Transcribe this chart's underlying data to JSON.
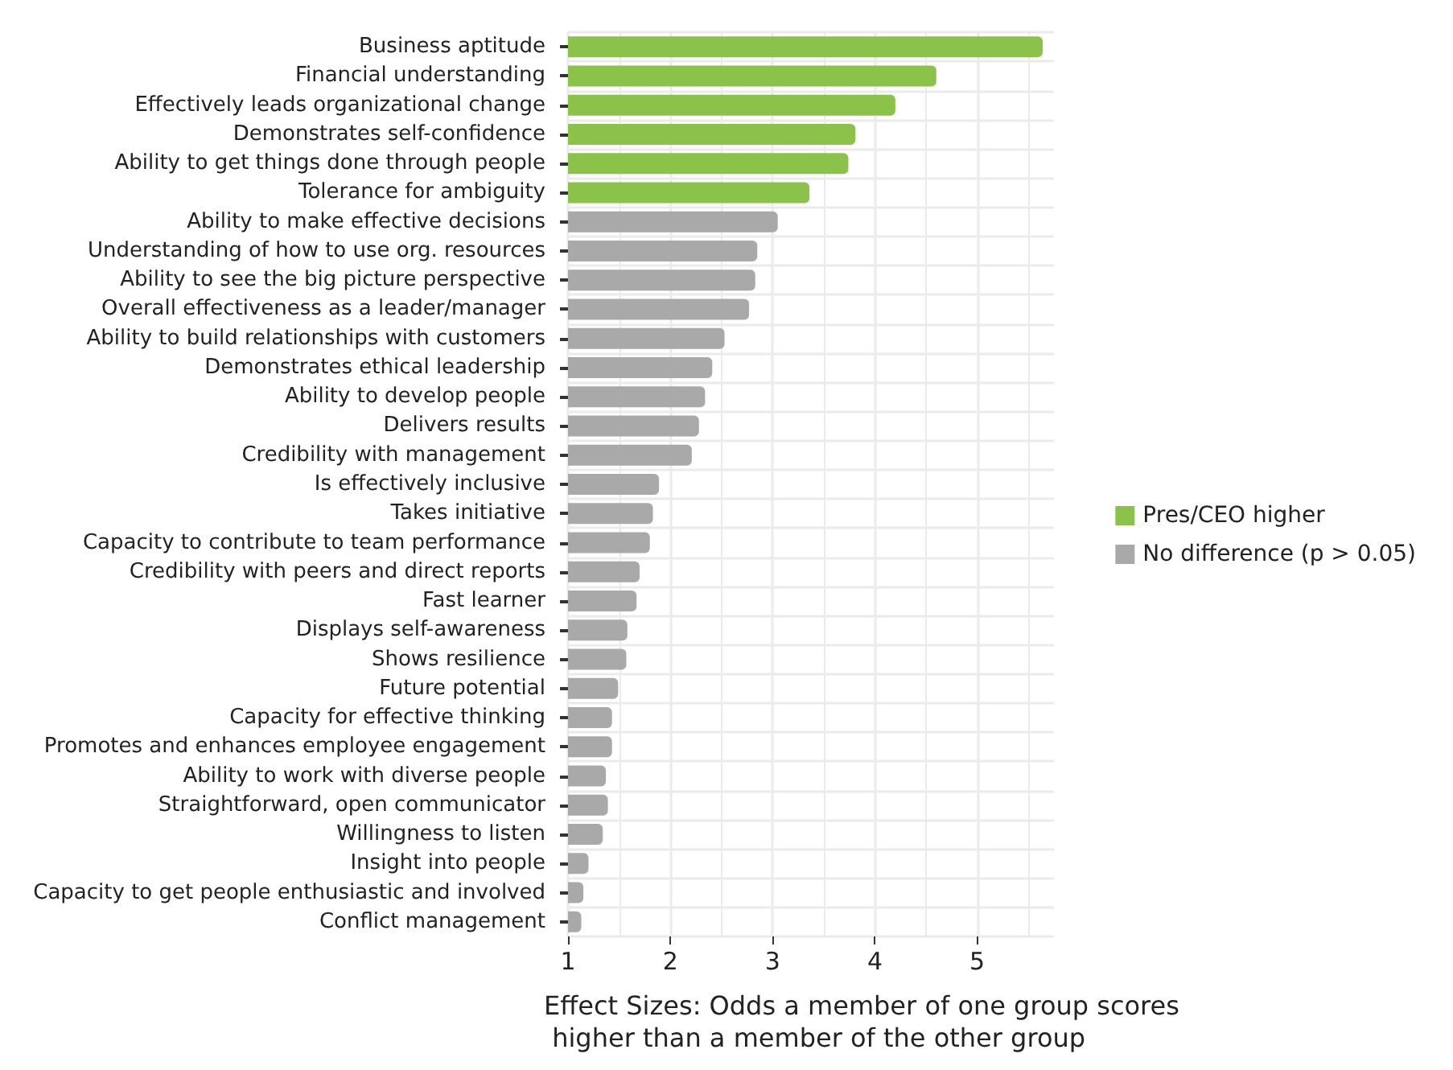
{
  "chart_data": {
    "type": "bar",
    "orientation": "horizontal",
    "xlabel": "Effect Sizes: Odds a member of one group scores higher than a member of the other group",
    "categories": [
      "Business aptitude",
      "Financial understanding",
      "Effectively leads organizational change",
      "Demonstrates self-confidence",
      "Ability to get things done through people",
      "Tolerance for ambiguity",
      "Ability to make effective decisions",
      "Understanding of how to use org. resources",
      "Ability to see the big picture perspective",
      "Overall effectiveness as a leader/manager",
      "Ability to build relationships with customers",
      "Demonstrates ethical leadership",
      "Ability to develop people",
      "Delivers results",
      "Credibility with management",
      "Is effectively inclusive",
      "Takes initiative",
      "Capacity to contribute to team performance",
      "Credibility with peers and direct reports",
      "Fast learner",
      "Displays self-awareness",
      "Shows resilience",
      "Future potential",
      "Capacity for effective thinking",
      "Promotes and enhances employee engagement",
      "Ability to work with diverse people",
      "Straightforward, open communicator",
      "Willingness to listen",
      "Insight into people",
      "Capacity to get people enthusiastic and involved",
      "Conflict management"
    ],
    "series": [
      {
        "name": "Pres/CEO higher",
        "color": "#8bc34a",
        "values": [
          5.64,
          4.6,
          4.2,
          3.81,
          3.74,
          3.36,
          null,
          null,
          null,
          null,
          null,
          null,
          null,
          null,
          null,
          null,
          null,
          null,
          null,
          null,
          null,
          null,
          null,
          null,
          null,
          null,
          null,
          null,
          null,
          null,
          null
        ]
      },
      {
        "name": "No difference (p > 0.05)",
        "color": "#a9a9a9",
        "values": [
          null,
          null,
          null,
          null,
          null,
          null,
          3.05,
          2.85,
          2.83,
          2.77,
          2.53,
          2.41,
          2.34,
          2.28,
          2.21,
          1.89,
          1.83,
          1.8,
          1.7,
          1.67,
          1.58,
          1.57,
          1.49,
          1.43,
          1.43,
          1.37,
          1.39,
          1.34,
          1.2,
          1.15,
          1.13
        ]
      }
    ],
    "xlim": [
      1,
      5.75
    ],
    "xticks": [
      1,
      2,
      3,
      4,
      5
    ],
    "grid": true,
    "legend": "right"
  }
}
